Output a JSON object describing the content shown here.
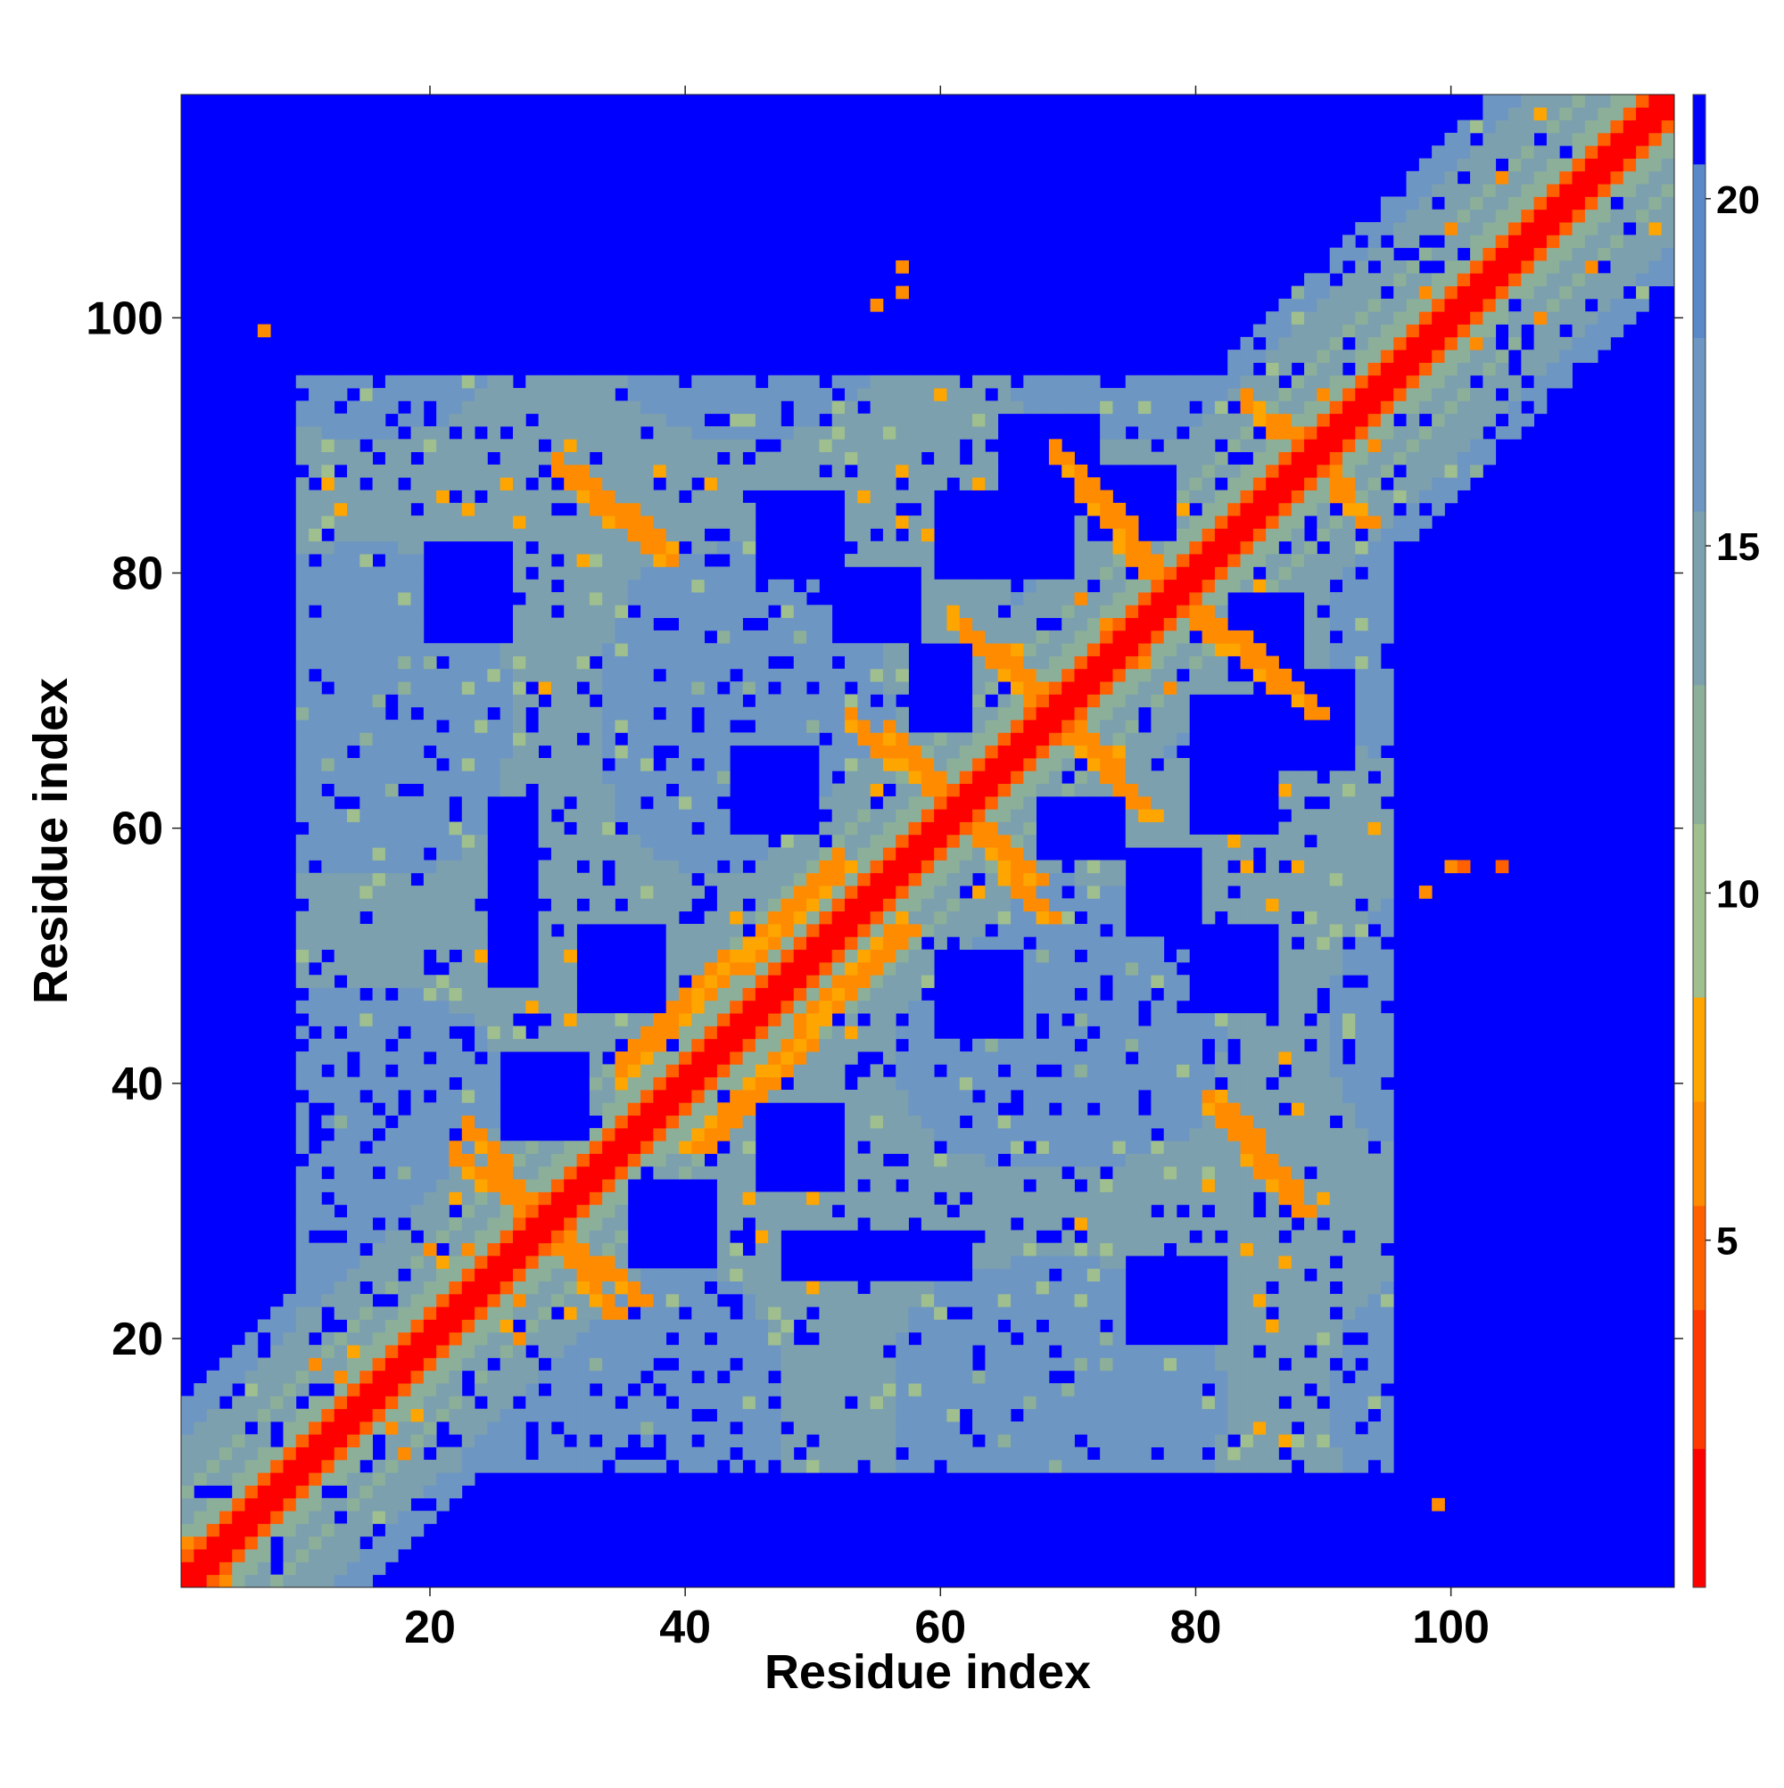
{
  "chart_data": {
    "type": "heatmap",
    "title": "",
    "xlabel": "Residue index",
    "ylabel": "Residue index",
    "xlim": [
      0.5,
      117.5
    ],
    "ylim": [
      0.5,
      117.5
    ],
    "xticks": [
      20,
      40,
      60,
      80,
      100
    ],
    "yticks": [
      20,
      40,
      60,
      80,
      100
    ],
    "colorbar": {
      "range": [
        0,
        21.5
      ],
      "ticks": [
        5,
        10,
        15,
        20
      ],
      "cmap": "red-orange-sage-steelblue-blue",
      "colors": [
        "#ff0000",
        "#ff7f00",
        "#ffa500",
        "#9fbf8f",
        "#6a96c8",
        "#0000ff"
      ]
    },
    "grid": false,
    "legend": "colorbar-right",
    "n_residues": 117,
    "diagonal": {
      "width_residues": 2,
      "value": 1
    },
    "contact_bands": [
      {
        "label": "N-term near-diagonal",
        "from": [
          1,
          1
        ],
        "to": [
          22,
          22
        ],
        "value": 6
      },
      {
        "label": "i,i+3 band 35-52",
        "from": [
          35,
          41
        ],
        "to": [
          52,
          57
        ],
        "value": 6
      },
      {
        "label": "cross 23-34 x 36-22",
        "from": [
          23,
          36
        ],
        "to": [
          34,
          22
        ],
        "value": 6
      },
      {
        "label": "cross 30-38 x 88-82",
        "from": [
          30,
          88
        ],
        "to": [
          38,
          82
        ],
        "value": 6
      },
      {
        "label": "cross 53-67 x 68-56",
        "from": [
          53,
          68
        ],
        "to": [
          67,
          56
        ],
        "value": 6
      },
      {
        "label": "cross 61-69 x 76-69",
        "from": [
          61,
          76
        ],
        "to": [
          69,
          69
        ],
        "value": 6
      },
      {
        "label": "cross 69-76 x 89-80",
        "from": [
          69,
          89
        ],
        "to": [
          76,
          80
        ],
        "value": 6
      },
      {
        "label": "cross 70-76 x 67-61",
        "from": [
          70,
          67
        ],
        "to": [
          76,
          61
        ],
        "value": 6
      },
      {
        "label": "cross 79-88 x 78-70",
        "from": [
          79,
          78
        ],
        "to": [
          88,
          70
        ],
        "value": 6
      },
      {
        "label": "cross 81-88 x 38-30",
        "from": [
          81,
          38
        ],
        "to": [
          88,
          30
        ],
        "value": 6
      },
      {
        "label": "cross 88-93 x 90-84",
        "from": [
          88,
          90
        ],
        "to": [
          93,
          84
        ],
        "value": 6
      }
    ],
    "isolated_contacts": [
      {
        "x": 7,
        "y": 99,
        "value": 6
      },
      {
        "x": 99,
        "y": 7,
        "value": 6
      },
      {
        "x": 55,
        "y": 101,
        "value": 6
      },
      {
        "x": 57,
        "y": 102,
        "value": 6
      },
      {
        "x": 57,
        "y": 104,
        "value": 6
      },
      {
        "x": 100,
        "y": 57,
        "value": 6
      },
      {
        "x": 101,
        "y": 57,
        "value": 5
      },
      {
        "x": 104,
        "y": 57,
        "value": 5
      },
      {
        "x": 98,
        "y": 55,
        "value": 6
      }
    ],
    "background_value": 21.5
  }
}
